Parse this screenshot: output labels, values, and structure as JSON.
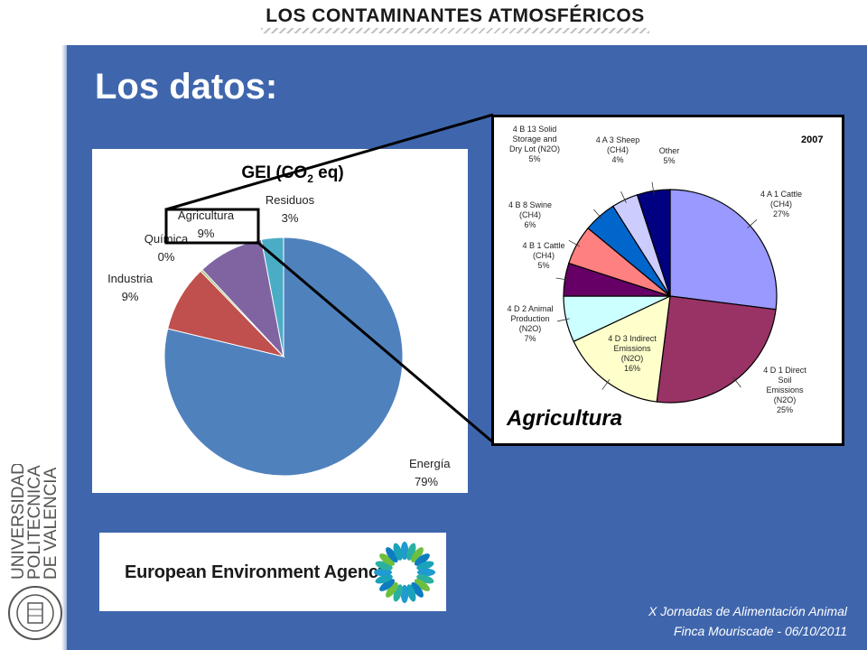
{
  "header": {
    "title": "LOS CONTAMINANTES ATMOSFÉRICOS"
  },
  "slide": {
    "title": "Los datos:"
  },
  "chart_data": [
    {
      "type": "pie",
      "title_prefix": "GEI (CO",
      "title_sub": "2",
      "title_suffix": " eq)",
      "slices": [
        {
          "label": "Energía",
          "pct_label": "79%",
          "value": 79,
          "color": "#4f81bd"
        },
        {
          "label": "Industria",
          "pct_label": "9%",
          "value": 9,
          "color": "#c0504d"
        },
        {
          "label": "Química",
          "pct_label": "0%",
          "value": 0.3,
          "color": "#9bbb59"
        },
        {
          "label": "Agricultura",
          "pct_label": "9%",
          "value": 9,
          "color": "#8064a2"
        },
        {
          "label": "Residuos",
          "pct_label": "3%",
          "value": 3,
          "color": "#4bacc6"
        }
      ]
    },
    {
      "type": "pie",
      "year_label": "2007",
      "caption": "Agricultura",
      "slices": [
        {
          "lines": [
            "4 A 1 Cattle",
            "(CH4)",
            "27%"
          ],
          "value": 27,
          "color": "#9999ff"
        },
        {
          "lines": [
            "4 D 1 Direct",
            "Soil",
            "Emissions",
            "(N2O)",
            "25%"
          ],
          "value": 25,
          "color": "#993366"
        },
        {
          "lines": [
            "4 D 3 Indirect",
            "Emissions",
            "(N2O)",
            "16%"
          ],
          "value": 16,
          "color": "#ffffcc"
        },
        {
          "lines": [
            "4 D 2 Animal",
            "Production",
            "(N2O)",
            "7%"
          ],
          "value": 7,
          "color": "#ccffff"
        },
        {
          "lines": [
            "4 B 1 Cattle",
            "(CH4)",
            "5%"
          ],
          "value": 5,
          "color": "#660066"
        },
        {
          "lines": [
            "4 B 8 Swine",
            "(CH4)",
            "6%"
          ],
          "value": 6,
          "color": "#ff8080"
        },
        {
          "lines": [
            "4 B 13 Solid",
            "Storage and",
            "Dry Lot (N2O)",
            "5%"
          ],
          "value": 5,
          "color": "#0066cc"
        },
        {
          "lines": [
            "4 A 3 Sheep",
            "(CH4)",
            "4%"
          ],
          "value": 4,
          "color": "#ccccff"
        },
        {
          "lines": [
            "Other",
            "5%"
          ],
          "value": 5,
          "color": "#000080"
        }
      ]
    }
  ],
  "eea": {
    "name": "European Environment Agency"
  },
  "footer": {
    "line1": "X Jornadas de Alimentación Animal",
    "line2": "Finca Mouriscade  -  06/10/2011"
  },
  "upv": {
    "name_lines": [
      "UNIVERSIDAD",
      "POLITECNICA",
      "DE VALENCIA"
    ]
  }
}
